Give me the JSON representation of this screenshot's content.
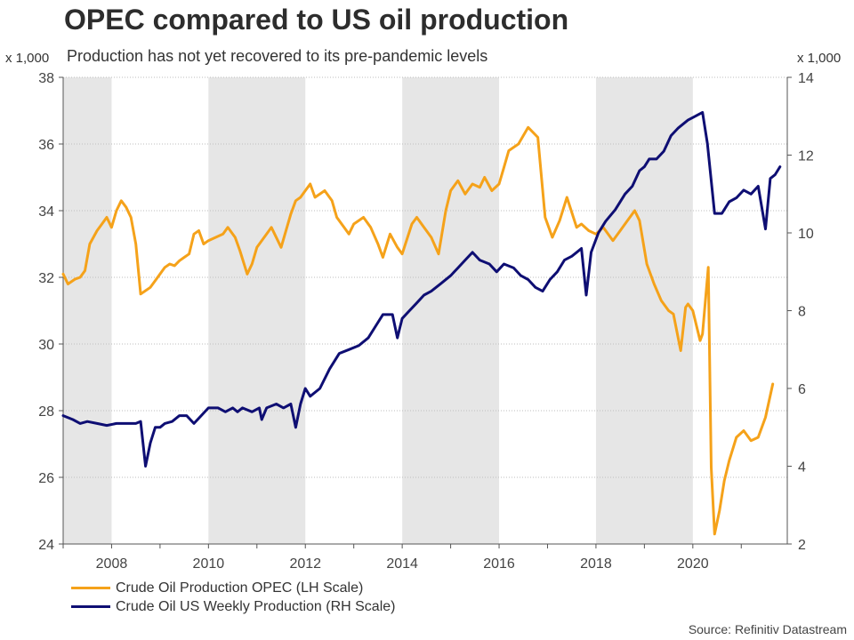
{
  "header": {
    "title": "OPEC compared to US oil production",
    "subtitle": "Production has not yet recovered to its pre-pandemic levels",
    "unit_left": "x 1,000",
    "unit_right": "x 1,000"
  },
  "source": "Source: Refinitiv Datastream",
  "colors": {
    "opec": "#f5a21a",
    "us": "#0e0e73",
    "shade": "#e6e6e6",
    "grid": "#bdbdbd"
  },
  "chart_data": {
    "type": "line",
    "title": "OPEC compared to US oil production",
    "subtitle": "Production has not yet recovered to its pre-pandemic levels",
    "x_range": [
      2007.0,
      2021.95
    ],
    "x_ticks": [
      2008,
      2010,
      2012,
      2014,
      2016,
      2018,
      2020
    ],
    "x_tick_labels": [
      "2008",
      "2010",
      "2012",
      "2014",
      "2016",
      "2018",
      "2020"
    ],
    "y_left": {
      "label": "x 1,000",
      "range": [
        24,
        38
      ],
      "ticks": [
        24,
        26,
        28,
        30,
        32,
        34,
        36,
        38
      ]
    },
    "y_right": {
      "label": "x 1,000",
      "range": [
        2,
        14
      ],
      "ticks": [
        2,
        4,
        6,
        8,
        10,
        12,
        14
      ]
    },
    "shaded_periods": [
      [
        2007.0,
        2008.0
      ],
      [
        2010.0,
        2012.0
      ],
      [
        2014.0,
        2016.0
      ],
      [
        2018.0,
        2020.0
      ]
    ],
    "grid": "horizontal dotted",
    "legend_position": "bottom-left",
    "series": [
      {
        "name": "Crude Oil Production OPEC (LH Scale)",
        "axis": "left",
        "color": "#f5a21a",
        "x": [
          2007.0,
          2007.1,
          2007.25,
          2007.35,
          2007.45,
          2007.55,
          2007.7,
          2007.8,
          2007.9,
          2008.0,
          2008.1,
          2008.2,
          2008.3,
          2008.4,
          2008.5,
          2008.6,
          2008.7,
          2008.8,
          2008.9,
          2009.0,
          2009.1,
          2009.2,
          2009.3,
          2009.4,
          2009.5,
          2009.6,
          2009.7,
          2009.8,
          2009.9,
          2010.0,
          2010.15,
          2010.3,
          2010.4,
          2010.55,
          2010.65,
          2010.8,
          2010.9,
          2011.0,
          2011.2,
          2011.3,
          2011.5,
          2011.7,
          2011.8,
          2011.9,
          2012.0,
          2012.1,
          2012.2,
          2012.4,
          2012.55,
          2012.65,
          2012.8,
          2012.9,
          2013.0,
          2013.2,
          2013.35,
          2013.5,
          2013.6,
          2013.75,
          2013.9,
          2014.0,
          2014.2,
          2014.3,
          2014.45,
          2014.6,
          2014.75,
          2014.9,
          2015.0,
          2015.15,
          2015.3,
          2015.45,
          2015.6,
          2015.7,
          2015.85,
          2016.0,
          2016.1,
          2016.2,
          2016.4,
          2016.6,
          2016.8,
          2016.95,
          2017.1,
          2017.25,
          2017.4,
          2017.6,
          2017.7,
          2017.85,
          2018.0,
          2018.15,
          2018.35,
          2018.5,
          2018.65,
          2018.8,
          2018.9,
          2019.05,
          2019.2,
          2019.35,
          2019.5,
          2019.6,
          2019.75,
          2019.85,
          2019.9,
          2020.0,
          2020.15,
          2020.2,
          2020.32,
          2020.38,
          2020.45,
          2020.55,
          2020.65,
          2020.75,
          2020.9,
          2021.05,
          2021.2,
          2021.35,
          2021.5,
          2021.65
        ],
        "values": [
          32.1,
          31.8,
          31.95,
          32.0,
          32.2,
          33.0,
          33.4,
          33.6,
          33.8,
          33.5,
          34.0,
          34.3,
          34.1,
          33.8,
          33.0,
          31.5,
          31.6,
          31.7,
          31.9,
          32.1,
          32.3,
          32.4,
          32.35,
          32.5,
          32.6,
          32.7,
          33.3,
          33.4,
          33.0,
          33.1,
          33.2,
          33.3,
          33.5,
          33.2,
          32.8,
          32.1,
          32.4,
          32.9,
          33.3,
          33.5,
          32.9,
          33.9,
          34.3,
          34.4,
          34.6,
          34.8,
          34.4,
          34.6,
          34.3,
          33.8,
          33.5,
          33.3,
          33.6,
          33.8,
          33.5,
          33.0,
          32.6,
          33.3,
          32.9,
          32.7,
          33.6,
          33.8,
          33.5,
          33.2,
          32.7,
          34.0,
          34.6,
          34.9,
          34.5,
          34.8,
          34.7,
          35.0,
          34.6,
          34.8,
          35.3,
          35.8,
          36.0,
          36.5,
          36.2,
          33.8,
          33.2,
          33.7,
          34.4,
          33.5,
          33.6,
          33.4,
          33.3,
          33.5,
          33.1,
          33.4,
          33.7,
          34.0,
          33.7,
          32.4,
          31.8,
          31.3,
          31.0,
          30.9,
          29.8,
          31.1,
          31.2,
          31.0,
          30.1,
          30.3,
          32.3,
          26.3,
          24.3,
          25.0,
          25.9,
          26.5,
          27.2,
          27.4,
          27.1,
          27.2,
          27.8,
          28.8
        ],
        "points_note": "values estimated from image"
      },
      {
        "name": "Crude Oil US Weekly Production (RH Scale)",
        "axis": "right",
        "color": "#0e0e73",
        "x": [
          2007.0,
          2007.2,
          2007.35,
          2007.5,
          2007.7,
          2007.9,
          2008.1,
          2008.3,
          2008.5,
          2008.6,
          2008.7,
          2008.8,
          2008.9,
          2009.0,
          2009.1,
          2009.25,
          2009.4,
          2009.55,
          2009.7,
          2009.85,
          2010.0,
          2010.2,
          2010.35,
          2010.5,
          2010.6,
          2010.7,
          2010.9,
          2011.05,
          2011.1,
          2011.2,
          2011.4,
          2011.55,
          2011.7,
          2011.8,
          2011.9,
          2012.0,
          2012.1,
          2012.3,
          2012.5,
          2012.7,
          2012.9,
          2013.1,
          2013.3,
          2013.45,
          2013.6,
          2013.8,
          2013.9,
          2014.0,
          2014.15,
          2014.3,
          2014.45,
          2014.6,
          2014.8,
          2015.0,
          2015.15,
          2015.3,
          2015.45,
          2015.6,
          2015.8,
          2015.95,
          2016.1,
          2016.3,
          2016.45,
          2016.6,
          2016.75,
          2016.9,
          2017.05,
          2017.2,
          2017.35,
          2017.5,
          2017.6,
          2017.7,
          2017.8,
          2017.9,
          2018.05,
          2018.2,
          2018.4,
          2018.6,
          2018.75,
          2018.9,
          2019.0,
          2019.1,
          2019.25,
          2019.4,
          2019.55,
          2019.7,
          2019.9,
          2020.05,
          2020.2,
          2020.3,
          2020.45,
          2020.6,
          2020.75,
          2020.9,
          2021.05,
          2021.2,
          2021.35,
          2021.5,
          2021.6,
          2021.7,
          2021.8
        ],
        "values": [
          5.3,
          5.2,
          5.1,
          5.15,
          5.1,
          5.05,
          5.1,
          5.1,
          5.1,
          5.15,
          4.0,
          4.6,
          5.0,
          5.0,
          5.1,
          5.15,
          5.3,
          5.3,
          5.1,
          5.3,
          5.5,
          5.5,
          5.4,
          5.5,
          5.4,
          5.5,
          5.4,
          5.5,
          5.2,
          5.5,
          5.6,
          5.5,
          5.6,
          5.0,
          5.6,
          6.0,
          5.8,
          6.0,
          6.5,
          6.9,
          7.0,
          7.1,
          7.3,
          7.6,
          7.9,
          7.9,
          7.3,
          7.8,
          8.0,
          8.2,
          8.4,
          8.5,
          8.7,
          8.9,
          9.1,
          9.3,
          9.5,
          9.3,
          9.2,
          9.0,
          9.2,
          9.1,
          8.9,
          8.8,
          8.6,
          8.5,
          8.8,
          9.0,
          9.3,
          9.4,
          9.5,
          9.6,
          8.4,
          9.5,
          10.0,
          10.3,
          10.6,
          11.0,
          11.2,
          11.6,
          11.7,
          11.9,
          11.9,
          12.1,
          12.5,
          12.7,
          12.9,
          13.0,
          13.1,
          12.3,
          10.5,
          10.5,
          10.8,
          10.9,
          11.1,
          11.0,
          11.2,
          10.1,
          11.4,
          11.5,
          11.7
        ],
        "points_note": "values estimated from image"
      }
    ]
  }
}
